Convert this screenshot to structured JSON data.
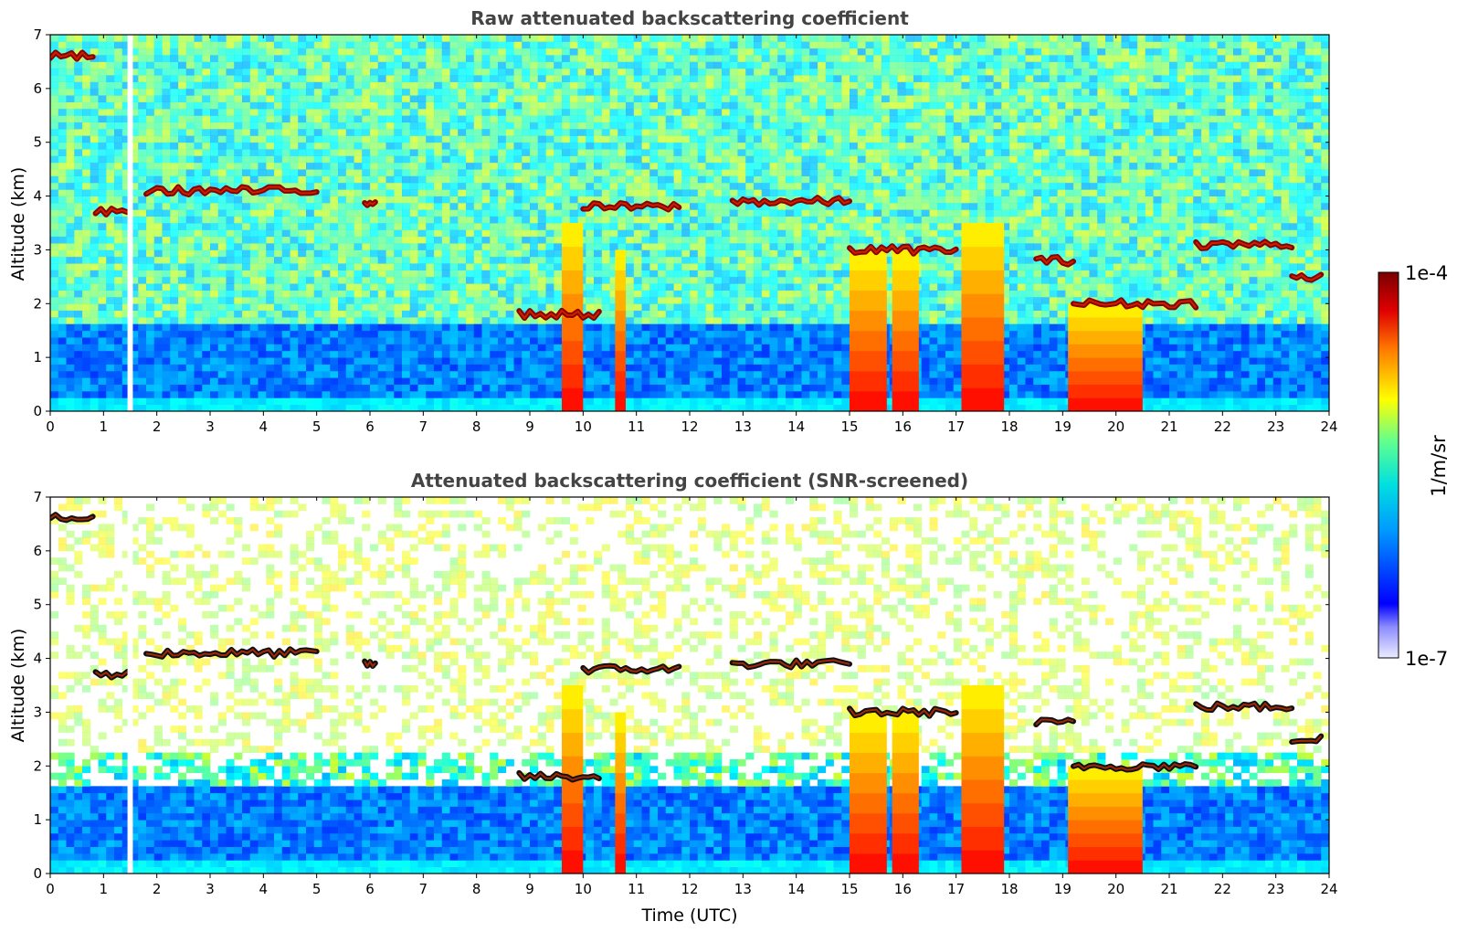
{
  "chart_data": [
    {
      "type": "heatmap",
      "title": "Raw attenuated backscattering coefficient",
      "xlabel": "",
      "ylabel": "Altitude (km)",
      "xlim": [
        0,
        24
      ],
      "ylim": [
        0,
        7
      ],
      "x_ticks": [
        "0",
        "1",
        "2",
        "3",
        "4",
        "5",
        "6",
        "7",
        "8",
        "9",
        "10",
        "11",
        "12",
        "13",
        "14",
        "15",
        "16",
        "17",
        "18",
        "19",
        "20",
        "21",
        "22",
        "23",
        "24"
      ],
      "y_ticks": [
        "0",
        "1",
        "2",
        "3",
        "4",
        "5",
        "6",
        "7"
      ],
      "screened": false,
      "data_gaps_hours": [
        [
          1.45,
          1.55
        ]
      ],
      "cloud_layers": [
        {
          "start_h": 0.0,
          "end_h": 0.8,
          "altitude_km": 6.6
        },
        {
          "start_h": 0.85,
          "end_h": 1.45,
          "altitude_km": 3.7
        },
        {
          "start_h": 1.8,
          "end_h": 5.0,
          "altitude_km": 4.1
        },
        {
          "start_h": 5.9,
          "end_h": 6.1,
          "altitude_km": 3.9
        },
        {
          "start_h": 8.8,
          "end_h": 10.3,
          "altitude_km": 1.8
        },
        {
          "start_h": 10.0,
          "end_h": 11.8,
          "altitude_km": 3.8
        },
        {
          "start_h": 12.8,
          "end_h": 15.0,
          "altitude_km": 3.9
        },
        {
          "start_h": 15.0,
          "end_h": 17.0,
          "altitude_km": 3.0
        },
        {
          "start_h": 18.5,
          "end_h": 19.2,
          "altitude_km": 2.8
        },
        {
          "start_h": 19.2,
          "end_h": 21.5,
          "altitude_km": 2.0
        },
        {
          "start_h": 21.5,
          "end_h": 23.3,
          "altitude_km": 3.1
        },
        {
          "start_h": 23.3,
          "end_h": 23.85,
          "altitude_km": 2.5
        }
      ],
      "precipitation_columns": [
        {
          "start_h": 9.6,
          "end_h": 10.0,
          "top_km": 3.5
        },
        {
          "start_h": 10.6,
          "end_h": 10.8,
          "top_km": 3.0
        },
        {
          "start_h": 15.0,
          "end_h": 15.7,
          "top_km": 3.0
        },
        {
          "start_h": 15.8,
          "end_h": 16.3,
          "top_km": 3.0
        },
        {
          "start_h": 17.1,
          "end_h": 17.9,
          "top_km": 3.5
        },
        {
          "start_h": 19.1,
          "end_h": 20.5,
          "top_km": 2.0
        }
      ]
    },
    {
      "type": "heatmap",
      "title": "Attenuated backscattering coefficient (SNR-screened)",
      "xlabel": "Time (UTC)",
      "ylabel": "Altitude (km)",
      "xlim": [
        0,
        24
      ],
      "ylim": [
        0,
        7
      ],
      "x_ticks": [
        "0",
        "1",
        "2",
        "3",
        "4",
        "5",
        "6",
        "7",
        "8",
        "9",
        "10",
        "11",
        "12",
        "13",
        "14",
        "15",
        "16",
        "17",
        "18",
        "19",
        "20",
        "21",
        "22",
        "23",
        "24"
      ],
      "y_ticks": [
        "0",
        "1",
        "2",
        "3",
        "4",
        "5",
        "6",
        "7"
      ],
      "screened": true,
      "data_gaps_hours": [
        [
          1.45,
          1.55
        ]
      ],
      "cloud_layers": [
        {
          "start_h": 0.0,
          "end_h": 0.8,
          "altitude_km": 6.6
        },
        {
          "start_h": 0.85,
          "end_h": 1.45,
          "altitude_km": 3.7
        },
        {
          "start_h": 1.8,
          "end_h": 5.0,
          "altitude_km": 4.1
        },
        {
          "start_h": 5.9,
          "end_h": 6.1,
          "altitude_km": 3.9
        },
        {
          "start_h": 8.8,
          "end_h": 10.3,
          "altitude_km": 1.8
        },
        {
          "start_h": 10.0,
          "end_h": 11.8,
          "altitude_km": 3.8
        },
        {
          "start_h": 12.8,
          "end_h": 15.0,
          "altitude_km": 3.9
        },
        {
          "start_h": 15.0,
          "end_h": 17.0,
          "altitude_km": 3.0
        },
        {
          "start_h": 18.5,
          "end_h": 19.2,
          "altitude_km": 2.8
        },
        {
          "start_h": 19.2,
          "end_h": 21.5,
          "altitude_km": 2.0
        },
        {
          "start_h": 21.5,
          "end_h": 23.3,
          "altitude_km": 3.1
        },
        {
          "start_h": 23.3,
          "end_h": 23.85,
          "altitude_km": 2.5
        }
      ],
      "precipitation_columns": [
        {
          "start_h": 9.6,
          "end_h": 10.0,
          "top_km": 3.5
        },
        {
          "start_h": 10.6,
          "end_h": 10.8,
          "top_km": 3.0
        },
        {
          "start_h": 15.0,
          "end_h": 15.7,
          "top_km": 3.0
        },
        {
          "start_h": 15.8,
          "end_h": 16.3,
          "top_km": 3.0
        },
        {
          "start_h": 17.1,
          "end_h": 17.9,
          "top_km": 3.5
        },
        {
          "start_h": 19.1,
          "end_h": 20.5,
          "top_km": 2.0
        }
      ]
    }
  ],
  "colorbar": {
    "max_label": "1e-4",
    "min_label": "1e-7",
    "unit_label": "1/m/sr",
    "colormap": "jet",
    "colors": [
      "#e6e6ff",
      "#0000ff",
      "#00aaff",
      "#00ffcc",
      "#ffff00",
      "#ff6600",
      "#cc0000",
      "#7a0000"
    ]
  }
}
